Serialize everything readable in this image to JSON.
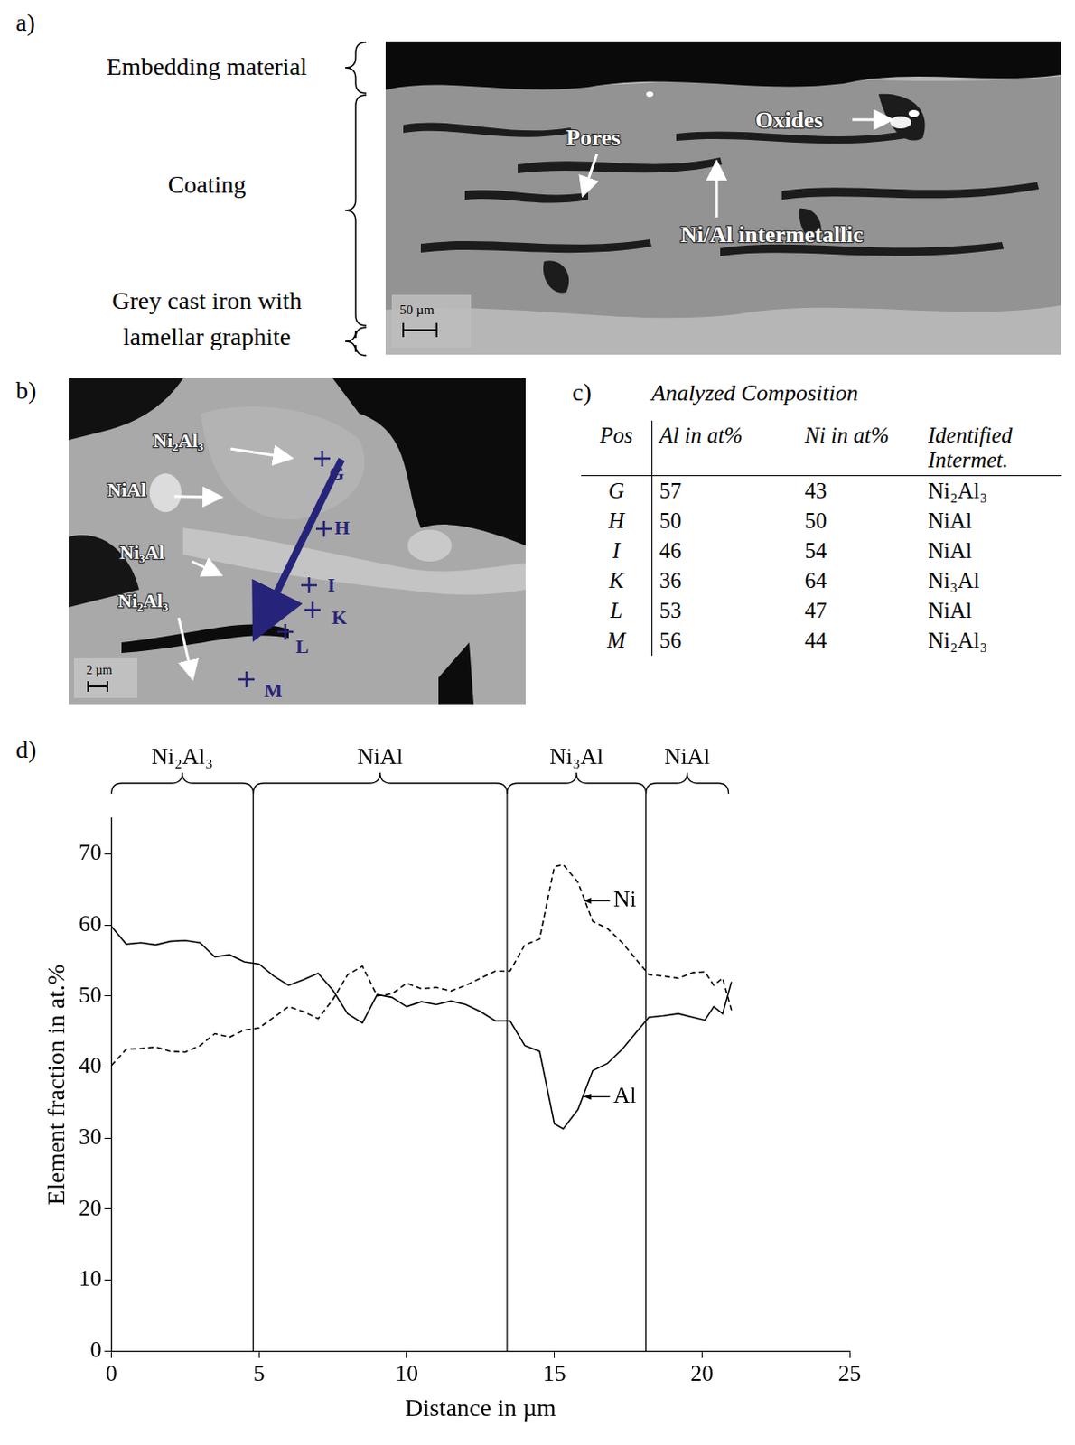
{
  "panels": {
    "a": {
      "label": "a)",
      "layers": [
        "Embedding material",
        "Coating",
        "Grey cast iron with lamellar graphite"
      ],
      "annotations": [
        "Pores",
        "Oxides",
        "Ni/Al intermetallic"
      ],
      "scale_bar": "50 µm"
    },
    "b": {
      "label": "b)",
      "phase_labels": [
        "Ni₂Al₃",
        "NiAl",
        "Ni₃Al",
        "Ni₂Al₃"
      ],
      "points": [
        "G",
        "H",
        "I",
        "K",
        "L",
        "M"
      ],
      "scale_bar": "2 µm"
    },
    "c": {
      "label": "c)",
      "title": "Analyzed Composition",
      "header": [
        "Pos",
        "Al in at%",
        "Ni in at%",
        "Identified Intermet."
      ],
      "rows": [
        [
          "G",
          57,
          43,
          "Ni₂Al₃"
        ],
        [
          "H",
          50,
          50,
          "NiAl"
        ],
        [
          "I",
          46,
          54,
          "NiAl"
        ],
        [
          "K",
          36,
          64,
          "Ni₃Al"
        ],
        [
          "L",
          53,
          47,
          "NiAl"
        ],
        [
          "M",
          56,
          44,
          "Ni₂Al₃"
        ]
      ]
    },
    "d": {
      "label": "d)"
    }
  },
  "chart_data": {
    "type": "line",
    "x_label": "Distance in µm",
    "y_label": "Element fraction in at.%",
    "x": [
      0,
      0.5,
      1,
      1.5,
      2,
      2.5,
      3,
      3.5,
      4,
      4.5,
      5,
      5.5,
      6,
      6.5,
      7,
      7.5,
      8,
      8.5,
      9,
      9.5,
      10,
      10.5,
      11,
      11.5,
      12,
      12.5,
      13,
      13.5,
      14,
      14.5,
      15,
      15.3,
      15.8,
      16.3,
      16.8,
      17.3,
      17.8,
      18.2,
      18.7,
      19.2,
      19.7,
      20.1,
      20.4,
      20.7,
      21
    ],
    "series": [
      {
        "name": "Ni",
        "color": "#000000",
        "line_style": "dashed",
        "values": [
          40.2,
          42.5,
          42.6,
          42.8,
          42.2,
          42.1,
          43,
          44.7,
          44.2,
          45.2,
          45.5,
          47,
          48.5,
          47.8,
          46.8,
          49.5,
          53,
          54.2,
          50,
          50.3,
          51.8,
          51,
          51.2,
          50.7,
          51.5,
          52.5,
          53.5,
          53.5,
          57.2,
          58,
          68.2,
          68.5,
          66,
          60.5,
          59.5,
          57.5,
          55,
          53,
          52.8,
          52.5,
          53.3,
          53.4,
          51.5,
          52.5,
          48
        ]
      },
      {
        "name": "Al",
        "color": "#000000",
        "line_style": "solid",
        "values": [
          59.8,
          57.3,
          57.5,
          57.2,
          57.7,
          57.8,
          57.5,
          55.5,
          55.8,
          54.8,
          54.5,
          52.8,
          51.5,
          52.3,
          53.2,
          50.8,
          47.5,
          46.2,
          50.2,
          49.8,
          48.5,
          49.2,
          48.8,
          49.3,
          48.8,
          47.8,
          46.5,
          46.5,
          43,
          42.2,
          32,
          31.3,
          34,
          39.5,
          40.5,
          42.5,
          45,
          47,
          47.2,
          47.5,
          47,
          46.6,
          48.5,
          47.5,
          52
        ]
      }
    ],
    "xlim": [
      0,
      25
    ],
    "xticks": [
      0,
      5,
      10,
      15,
      20,
      25
    ],
    "ylim": [
      0,
      75
    ],
    "yticks": [
      0,
      10,
      20,
      30,
      40,
      50,
      60,
      70
    ],
    "grid": false,
    "phase_regions": [
      {
        "label": "Ni₂Al₃",
        "start": 0,
        "end": 4.8
      },
      {
        "label": "NiAl",
        "start": 4.8,
        "end": 13.4
      },
      {
        "label": "Ni₃Al",
        "start": 13.4,
        "end": 18.1
      },
      {
        "label": "NiAl",
        "start": 18.1,
        "end": 20.9
      }
    ],
    "annotations": [
      {
        "text": "Ni",
        "x": 17.0,
        "y": 63.4,
        "arrow_to": [
          16.0,
          63.4
        ]
      },
      {
        "text": "Al",
        "x": 17.0,
        "y": 35.8,
        "arrow_to": [
          16.0,
          35.8
        ]
      }
    ]
  }
}
